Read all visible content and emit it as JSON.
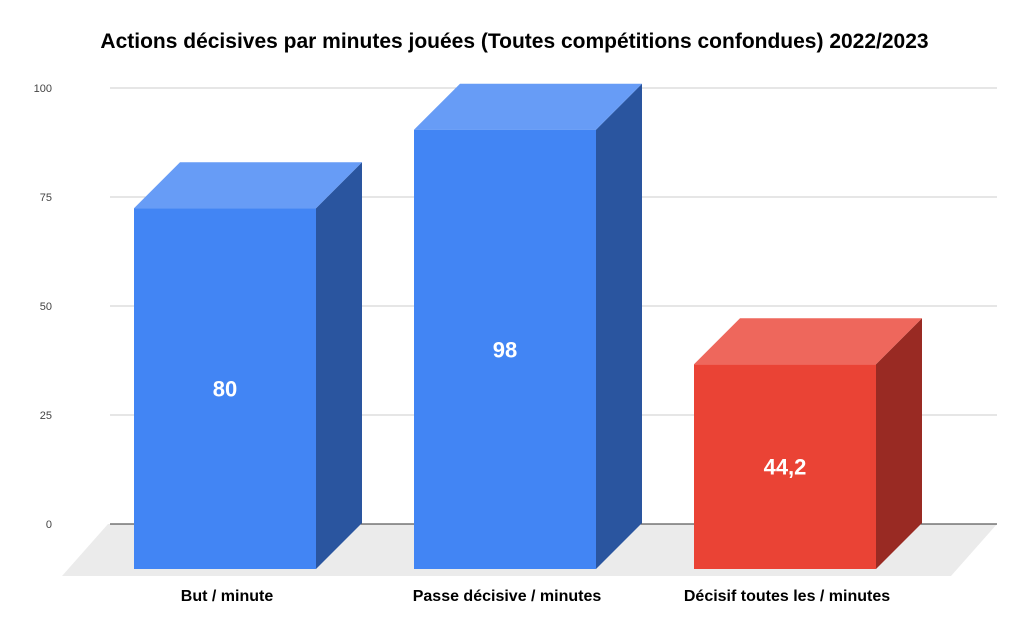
{
  "chart_data": {
    "type": "bar",
    "title": "Actions décisives par minutes jouées (Toutes compétitions confondues) 2022/2023",
    "categories": [
      "But / minute",
      "Passe décisive / minutes",
      "Décisif toutes les / minutes"
    ],
    "values": [
      80,
      98,
      44.2
    ],
    "data_labels": [
      "80",
      "98",
      "44,2"
    ],
    "bar_colors": [
      "#4285f4",
      "#4285f4",
      "#ea4335"
    ],
    "side_colors": [
      "#2a559f",
      "#2a559f",
      "#992a23"
    ],
    "top_colors": [
      "#679cf6",
      "#679cf6",
      "#ee675c"
    ],
    "floor_color": "#ebebeb",
    "grid_color": "#cccccc",
    "ylim": [
      0,
      100
    ],
    "yticks": [
      "0",
      "25",
      "50",
      "75",
      "100"
    ],
    "ytick_values": [
      0,
      25,
      50,
      75,
      100
    ],
    "grid": true,
    "legend": "none",
    "render_style": "3d"
  }
}
